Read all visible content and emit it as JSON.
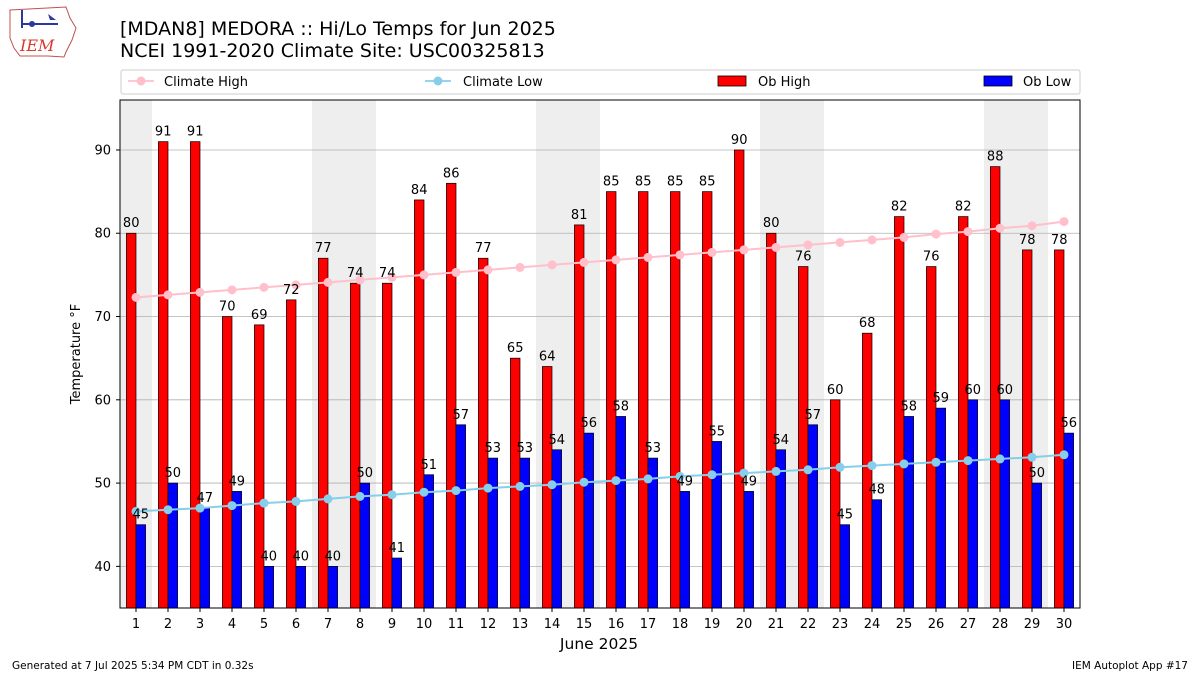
{
  "page": {
    "title_line1": "[MDAN8] MEDORA :: Hi/Lo Temps for Jun 2025",
    "title_line2": "NCEI 1991-2020 Climate Site: USC00325813",
    "footer_left": "Generated at 7 Jul 2025 5:34 PM CDT in 0.32s",
    "footer_right": "IEM Autoplot App #17",
    "logo_text": "IEM"
  },
  "colors": {
    "ob_high": "#ff0000",
    "ob_low": "#0000ff",
    "climate_high": "#ffc0cb",
    "climate_low": "#87ceeb",
    "weekend_band": "#eeeeee",
    "grid": "#b0b0b0"
  },
  "chart_data": {
    "type": "bar",
    "title": "[MDAN8] MEDORA :: Hi/Lo Temps for Jun 2025",
    "subtitle": "NCEI 1991-2020 Climate Site: USC00325813",
    "xlabel": "June 2025",
    "ylabel": "Temperature °F",
    "ylim": [
      35,
      96
    ],
    "yticks": [
      40,
      50,
      60,
      70,
      80,
      90
    ],
    "categories": [
      "1",
      "2",
      "3",
      "4",
      "5",
      "6",
      "7",
      "8",
      "9",
      "10",
      "11",
      "12",
      "13",
      "14",
      "15",
      "16",
      "17",
      "18",
      "19",
      "20",
      "21",
      "22",
      "23",
      "24",
      "25",
      "26",
      "27",
      "28",
      "29",
      "30"
    ],
    "weekend_days": [
      1,
      7,
      8,
      14,
      15,
      21,
      22,
      28,
      29
    ],
    "grid": true,
    "legend_position": "top",
    "series": [
      {
        "name": "Ob High",
        "kind": "bar",
        "values": [
          80,
          91,
          91,
          70,
          69,
          72,
          77,
          74,
          74,
          84,
          86,
          77,
          65,
          64,
          81,
          85,
          85,
          85,
          85,
          90,
          80,
          76,
          60,
          68,
          82,
          76,
          82,
          88,
          78,
          78
        ]
      },
      {
        "name": "Ob Low",
        "kind": "bar",
        "values": [
          45,
          50,
          47,
          49,
          40,
          40,
          40,
          50,
          41,
          51,
          57,
          53,
          53,
          54,
          56,
          58,
          53,
          49,
          55,
          49,
          54,
          57,
          45,
          48,
          58,
          59,
          60,
          60,
          50,
          56
        ]
      },
      {
        "name": "Climate High",
        "kind": "line",
        "values": [
          72.3,
          72.6,
          72.9,
          73.2,
          73.5,
          73.8,
          74.1,
          74.4,
          74.7,
          75.0,
          75.3,
          75.6,
          75.9,
          76.2,
          76.5,
          76.8,
          77.1,
          77.4,
          77.7,
          78.0,
          78.3,
          78.6,
          78.9,
          79.2,
          79.5,
          79.9,
          80.2,
          80.6,
          80.9,
          81.4
        ]
      },
      {
        "name": "Climate Low",
        "kind": "line",
        "values": [
          46.6,
          46.8,
          47.0,
          47.3,
          47.6,
          47.8,
          48.1,
          48.4,
          48.6,
          48.9,
          49.1,
          49.4,
          49.6,
          49.8,
          50.1,
          50.3,
          50.5,
          50.8,
          51.0,
          51.2,
          51.4,
          51.6,
          51.9,
          52.1,
          52.3,
          52.5,
          52.7,
          52.9,
          53.1,
          53.4
        ]
      }
    ],
    "legend": [
      "Climate High",
      "Climate Low",
      "Ob High",
      "Ob Low"
    ]
  }
}
